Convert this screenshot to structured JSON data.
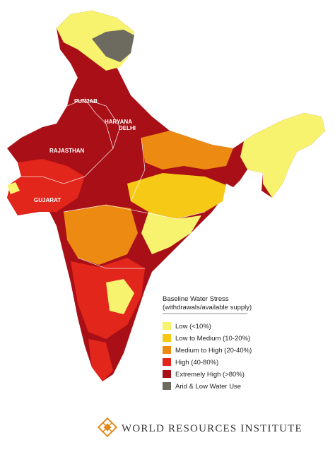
{
  "map": {
    "state_labels": [
      "PUNJAB",
      "HARYANA",
      "DELHI",
      "RAJASTHAN",
      "GUJARAT"
    ],
    "legend": {
      "title": [
        "Baseline Water Stress",
        "(withdrawals/available supply)"
      ],
      "items": [
        {
          "label": "Low (<10%)",
          "color": "#f7f36e"
        },
        {
          "label": "Low to Medium (10-20%)",
          "color": "#f5c916"
        },
        {
          "label": "Medium to High (20-40%)",
          "color": "#ec8a12"
        },
        {
          "label": "High (40-80%)",
          "color": "#e2261c"
        },
        {
          "label": "Extremely High (>80%)",
          "color": "#a80f16"
        },
        {
          "label": "Arid & Low Water Use",
          "color": "#6d6b60"
        }
      ]
    },
    "logo": "WORLD RESOURCES INSTITUTE"
  }
}
